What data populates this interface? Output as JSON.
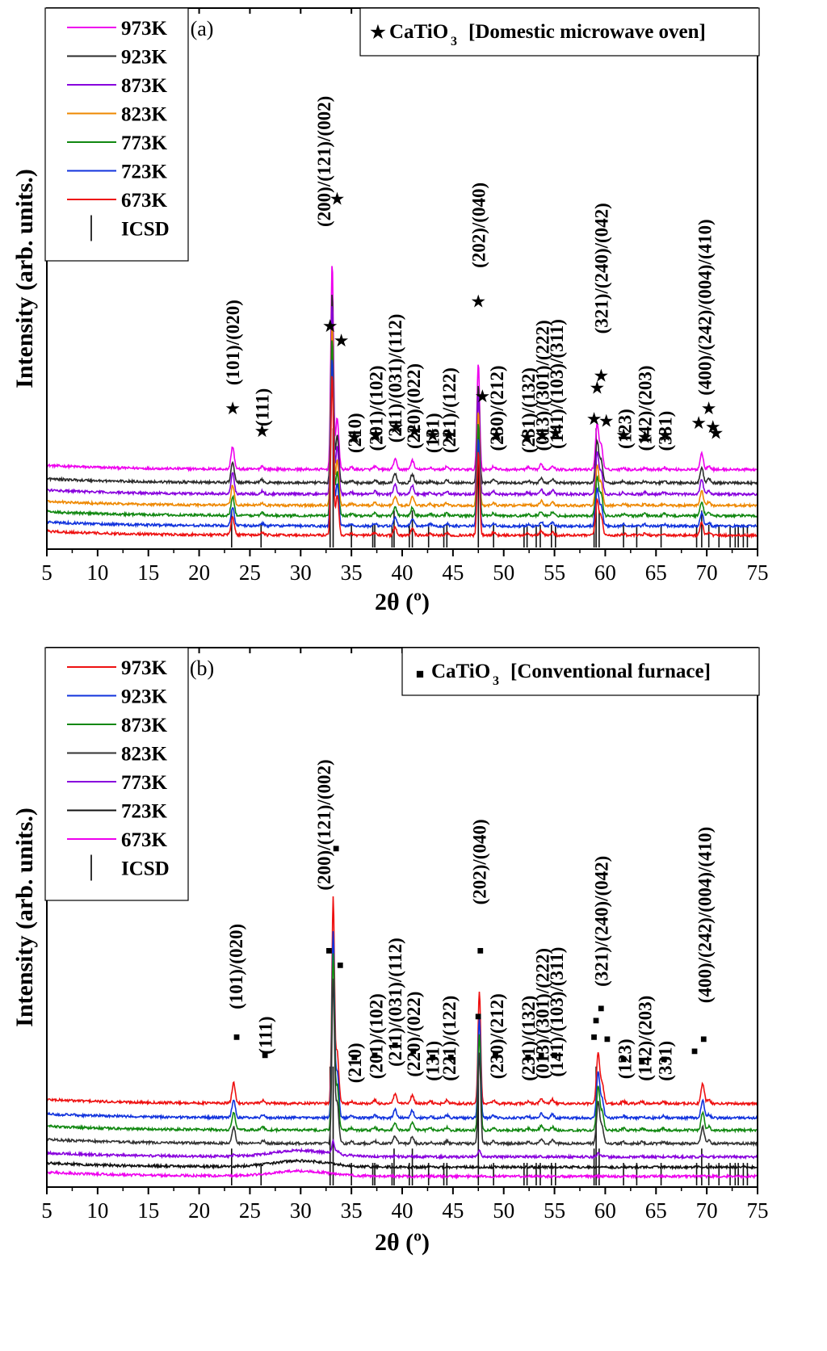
{
  "chart_data": [
    {
      "type": "line",
      "panel_label": "(a)",
      "legend_box_title": "CaTiO",
      "legend_box_title_sub": "3",
      "legend_box_note": "[Domestic microwave oven]",
      "marker_symbol": "★",
      "xlabel": "2θ (º)",
      "ylabel": "Intensity (arb. units.)",
      "xlim": [
        5,
        75
      ],
      "xticks": [
        5,
        10,
        15,
        20,
        25,
        30,
        35,
        40,
        45,
        50,
        55,
        60,
        65,
        70,
        75
      ],
      "series": [
        {
          "name": "973K",
          "color": "#ee00ee",
          "level": 0.34,
          "scale": 1.0
        },
        {
          "name": "923K",
          "color": "#2b2b2b",
          "level": 0.275,
          "scale": 0.92
        },
        {
          "name": "873K",
          "color": "#8800dd",
          "level": 0.22,
          "scale": 0.92
        },
        {
          "name": "823K",
          "color": "#ee8800",
          "level": 0.165,
          "scale": 0.88
        },
        {
          "name": "773K",
          "color": "#118811",
          "level": 0.115,
          "scale": 0.86
        },
        {
          "name": "723K",
          "color": "#1133dd",
          "level": 0.065,
          "scale": 0.82
        },
        {
          "name": "673K",
          "color": "#ee1111",
          "level": 0.02,
          "scale": 0.78
        }
      ],
      "icsd_label": "ICSD",
      "icsd_lines": [
        23.2,
        26.1,
        32.9,
        33.2,
        35.0,
        37.1,
        37.3,
        39.0,
        39.2,
        40.7,
        41.0,
        42.6,
        44.1,
        44.4,
        47.5,
        49.0,
        52.0,
        52.3,
        53.2,
        53.6,
        54.7,
        55.1,
        58.9,
        59.1,
        59.4,
        61.8,
        63.1,
        65.5,
        69.0,
        69.5,
        70.2,
        71.2,
        72.3,
        72.8,
        73.1,
        73.6,
        74.0
      ],
      "peaks": [
        {
          "x": 23.3,
          "h": 0.11
        },
        {
          "x": 26.2,
          "h": 0.015
        },
        {
          "x": 33.1,
          "h": 1.0
        },
        {
          "x": 33.6,
          "h": 0.25
        },
        {
          "x": 35.0,
          "h": 0.01
        },
        {
          "x": 37.3,
          "h": 0.015
        },
        {
          "x": 39.3,
          "h": 0.05
        },
        {
          "x": 41.0,
          "h": 0.045
        },
        {
          "x": 42.8,
          "h": 0.01
        },
        {
          "x": 44.4,
          "h": 0.015
        },
        {
          "x": 47.5,
          "h": 0.52
        },
        {
          "x": 49.0,
          "h": 0.015
        },
        {
          "x": 52.4,
          "h": 0.01
        },
        {
          "x": 53.7,
          "h": 0.025
        },
        {
          "x": 54.8,
          "h": 0.02
        },
        {
          "x": 59.2,
          "h": 0.22
        },
        {
          "x": 59.6,
          "h": 0.12
        },
        {
          "x": 61.8,
          "h": 0.01
        },
        {
          "x": 63.9,
          "h": 0.01
        },
        {
          "x": 65.8,
          "h": 0.01
        },
        {
          "x": 69.5,
          "h": 0.08
        },
        {
          "x": 70.2,
          "h": 0.02
        }
      ],
      "annotations": [
        {
          "text": "(101)/(020)",
          "x": 23.3,
          "y": 0.75
        },
        {
          "text": "(111)",
          "x": 26.2,
          "y": 0.55
        },
        {
          "text": "(200)/(121)/(002)",
          "x": 32.3,
          "y": 1.52
        },
        {
          "text": "(210)",
          "x": 35.3,
          "y": 0.42
        },
        {
          "text": "(201)/(102)",
          "x": 37.4,
          "y": 0.43
        },
        {
          "text": "(211)/(031)/(112)",
          "x": 39.3,
          "y": 0.47
        },
        {
          "text": "(220)/(022)",
          "x": 41.1,
          "y": 0.44
        },
        {
          "text": "(131)",
          "x": 43.0,
          "y": 0.42
        },
        {
          "text": "(221)/(122)",
          "x": 44.6,
          "y": 0.42
        },
        {
          "text": "(202)/(040)",
          "x": 47.5,
          "y": 1.32
        },
        {
          "text": "(230)/(212)",
          "x": 49.3,
          "y": 0.43
        },
        {
          "text": "(231)/(132)",
          "x": 52.4,
          "y": 0.42
        },
        {
          "text": "(013)/(301)/(222)",
          "x": 53.8,
          "y": 0.43
        },
        {
          "text": "(141)/(103)/(311)",
          "x": 55.2,
          "y": 0.44
        },
        {
          "text": "(321)/(240)/(042)",
          "x": 59.6,
          "y": 1.0
        },
        {
          "text": "(123)",
          "x": 61.9,
          "y": 0.44
        },
        {
          "text": "(142)/(203)",
          "x": 63.9,
          "y": 0.43
        },
        {
          "text": "(331)",
          "x": 65.9,
          "y": 0.43
        },
        {
          "text": "(400)/(242)/(004)/(410)",
          "x": 69.8,
          "y": 0.7
        }
      ],
      "markers": [
        {
          "x": 23.3,
          "y": 0.64
        },
        {
          "x": 26.2,
          "y": 0.53
        },
        {
          "x": 32.9,
          "y": 1.04
        },
        {
          "x": 33.6,
          "y": 1.66
        },
        {
          "x": 34.0,
          "y": 0.97
        },
        {
          "x": 35.3,
          "y": 0.5
        },
        {
          "x": 37.4,
          "y": 0.51
        },
        {
          "x": 39.4,
          "y": 0.55
        },
        {
          "x": 41.2,
          "y": 0.53
        },
        {
          "x": 43.0,
          "y": 0.51
        },
        {
          "x": 44.6,
          "y": 0.51
        },
        {
          "x": 47.5,
          "y": 1.16
        },
        {
          "x": 47.9,
          "y": 0.7
        },
        {
          "x": 49.3,
          "y": 0.51
        },
        {
          "x": 52.3,
          "y": 0.5
        },
        {
          "x": 53.8,
          "y": 0.51
        },
        {
          "x": 55.1,
          "y": 0.52
        },
        {
          "x": 58.9,
          "y": 0.59
        },
        {
          "x": 59.2,
          "y": 0.74
        },
        {
          "x": 59.6,
          "y": 0.8
        },
        {
          "x": 60.1,
          "y": 0.58
        },
        {
          "x": 61.8,
          "y": 0.51
        },
        {
          "x": 63.9,
          "y": 0.5
        },
        {
          "x": 65.9,
          "y": 0.51
        },
        {
          "x": 69.2,
          "y": 0.57
        },
        {
          "x": 70.2,
          "y": 0.64
        },
        {
          "x": 70.6,
          "y": 0.55
        },
        {
          "x": 70.9,
          "y": 0.52
        }
      ]
    },
    {
      "type": "line",
      "panel_label": "(b)",
      "legend_box_title": "CaTiO",
      "legend_box_title_sub": "3",
      "legend_box_note": "[Conventional furnace]",
      "marker_symbol": "■",
      "xlabel": "2θ (º)",
      "ylabel": "Intensity (arb. units.)",
      "xlim": [
        5,
        75
      ],
      "xticks": [
        5,
        10,
        15,
        20,
        25,
        30,
        35,
        40,
        45,
        50,
        55,
        60,
        65,
        70,
        75
      ],
      "series": [
        {
          "name": "973K",
          "color": "#ee1111",
          "level": 0.36,
          "scale": 1.0,
          "hump": 0.0
        },
        {
          "name": "923K",
          "color": "#1133dd",
          "level": 0.29,
          "scale": 0.9,
          "hump": 0.0
        },
        {
          "name": "873K",
          "color": "#118811",
          "level": 0.23,
          "scale": 0.86,
          "hump": 0.0
        },
        {
          "name": "823K",
          "color": "#333333",
          "level": 0.165,
          "scale": 0.8,
          "hump": 0.0
        },
        {
          "name": "773K",
          "color": "#8800dd",
          "level": 0.1,
          "scale": 0.06,
          "hump": 0.03
        },
        {
          "name": "723K",
          "color": "#111111",
          "level": 0.05,
          "scale": 0.0,
          "hump": 0.03
        },
        {
          "name": "673K",
          "color": "#ee00ee",
          "level": 0.005,
          "scale": 0.0,
          "hump": 0.025
        }
      ],
      "icsd_label": "ICSD",
      "icsd_lines": [
        23.2,
        26.1,
        32.9,
        33.2,
        35.0,
        37.1,
        37.3,
        39.0,
        39.2,
        40.7,
        41.0,
        42.6,
        44.1,
        44.4,
        47.5,
        49.0,
        52.0,
        52.3,
        53.2,
        53.6,
        54.7,
        55.1,
        58.9,
        59.1,
        59.4,
        61.8,
        63.1,
        65.5,
        69.0,
        69.5,
        70.2,
        71.2,
        72.3,
        72.8,
        73.1,
        73.6,
        74.0
      ],
      "peaks": [
        {
          "x": 23.4,
          "h": 0.1
        },
        {
          "x": 26.3,
          "h": 0.015
        },
        {
          "x": 33.2,
          "h": 1.0
        },
        {
          "x": 33.6,
          "h": 0.25
        },
        {
          "x": 35.0,
          "h": 0.01
        },
        {
          "x": 37.3,
          "h": 0.015
        },
        {
          "x": 39.3,
          "h": 0.045
        },
        {
          "x": 41.0,
          "h": 0.04
        },
        {
          "x": 42.8,
          "h": 0.01
        },
        {
          "x": 44.4,
          "h": 0.015
        },
        {
          "x": 47.6,
          "h": 0.55
        },
        {
          "x": 49.0,
          "h": 0.015
        },
        {
          "x": 52.4,
          "h": 0.01
        },
        {
          "x": 53.7,
          "h": 0.025
        },
        {
          "x": 54.8,
          "h": 0.02
        },
        {
          "x": 59.3,
          "h": 0.25
        },
        {
          "x": 59.7,
          "h": 0.1
        },
        {
          "x": 61.8,
          "h": 0.01
        },
        {
          "x": 63.6,
          "h": 0.01
        },
        {
          "x": 65.7,
          "h": 0.01
        },
        {
          "x": 69.6,
          "h": 0.1
        },
        {
          "x": 70.2,
          "h": 0.02
        }
      ],
      "annotations": [
        {
          "text": "(101)/(020)",
          "x": 23.6,
          "y": 0.82
        },
        {
          "text": "(111)",
          "x": 26.5,
          "y": 0.6
        },
        {
          "text": "(200)/(121)/(002)",
          "x": 32.3,
          "y": 1.4
        },
        {
          "text": "(210)",
          "x": 35.3,
          "y": 0.46
        },
        {
          "text": "(201)/(102)",
          "x": 37.4,
          "y": 0.48
        },
        {
          "text": "(211)/(031)/(112)",
          "x": 39.3,
          "y": 0.54
        },
        {
          "text": "(220)/(022)",
          "x": 41.1,
          "y": 0.49
        },
        {
          "text": "(131)",
          "x": 43.0,
          "y": 0.47
        },
        {
          "text": "(221)/(122)",
          "x": 44.6,
          "y": 0.47
        },
        {
          "text": "(202)/(040)",
          "x": 47.6,
          "y": 1.33
        },
        {
          "text": "(230)/(212)",
          "x": 49.3,
          "y": 0.48
        },
        {
          "text": "(231)/(132)",
          "x": 52.4,
          "y": 0.47
        },
        {
          "text": "(013)/(301)/(222)",
          "x": 53.8,
          "y": 0.48
        },
        {
          "text": "(141)/(103)/(311)",
          "x": 55.2,
          "y": 0.49
        },
        {
          "text": "(321)/(240)/(042)",
          "x": 59.6,
          "y": 0.93
        },
        {
          "text": "(123)",
          "x": 61.9,
          "y": 0.48
        },
        {
          "text": "(142)/(203)",
          "x": 63.9,
          "y": 0.47
        },
        {
          "text": "(331)",
          "x": 65.9,
          "y": 0.47
        },
        {
          "text": "(400)/(242)/(004)/(410)",
          "x": 69.8,
          "y": 0.85
        }
      ],
      "markers": [
        {
          "x": 23.7,
          "y": 0.7
        },
        {
          "x": 26.5,
          "y": 0.61
        },
        {
          "x": 32.8,
          "y": 1.12
        },
        {
          "x": 33.5,
          "y": 1.62
        },
        {
          "x": 33.9,
          "y": 1.05
        },
        {
          "x": 35.3,
          "y": 0.6
        },
        {
          "x": 37.3,
          "y": 0.61
        },
        {
          "x": 39.3,
          "y": 0.66
        },
        {
          "x": 41.1,
          "y": 0.63
        },
        {
          "x": 43.0,
          "y": 0.6
        },
        {
          "x": 44.8,
          "y": 0.6
        },
        {
          "x": 47.5,
          "y": 0.8
        },
        {
          "x": 47.7,
          "y": 1.12
        },
        {
          "x": 49.2,
          "y": 0.61
        },
        {
          "x": 52.4,
          "y": 0.6
        },
        {
          "x": 53.7,
          "y": 0.61
        },
        {
          "x": 55.0,
          "y": 0.61
        },
        {
          "x": 58.9,
          "y": 0.7
        },
        {
          "x": 59.1,
          "y": 0.78
        },
        {
          "x": 59.6,
          "y": 0.84
        },
        {
          "x": 60.2,
          "y": 0.69
        },
        {
          "x": 61.8,
          "y": 0.59
        },
        {
          "x": 63.6,
          "y": 0.58
        },
        {
          "x": 65.8,
          "y": 0.59
        },
        {
          "x": 68.8,
          "y": 0.63
        },
        {
          "x": 69.7,
          "y": 0.69
        }
      ]
    }
  ]
}
